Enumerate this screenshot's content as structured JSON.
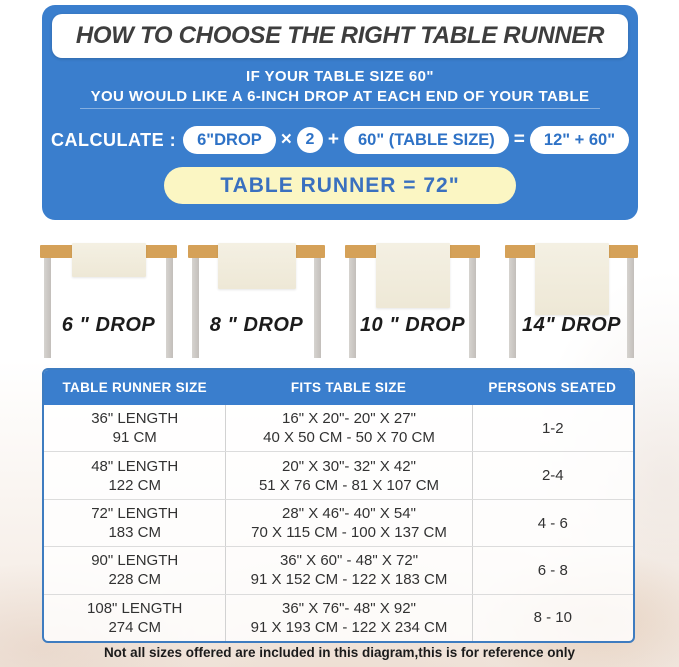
{
  "header": {
    "title": "HOW TO CHOOSE THE RIGHT TABLE RUNNER",
    "subtitle_line1": "IF YOUR TABLE SIZE 60\"",
    "subtitle_line2": "YOU WOULD LIKE A 6-INCH DROP AT EACH END OF YOUR TABLE",
    "calculate_label": "CALCULATE :",
    "formula": {
      "drop_pill": "6\"DROP",
      "times": "×",
      "multiplier": "2",
      "plus": "+",
      "table_size_pill": "60\" (TABLE SIZE)",
      "equals": "=",
      "result_pill": "12\" + 60\""
    },
    "runner_result": "TABLE RUNNER = 72\""
  },
  "diagram": {
    "tables": [
      {
        "label": "6 \" DROP"
      },
      {
        "label": "8 \" DROP"
      },
      {
        "label": "10 \" DROP"
      },
      {
        "label": "14\" DROP"
      }
    ]
  },
  "size_table": {
    "columns": [
      "TABLE RUNNER SIZE",
      "FITS TABLE SIZE",
      "PERSONS SEATED"
    ],
    "rows": [
      {
        "size1": "36\" LENGTH",
        "size2": "91 CM",
        "fits1": "16\" X 20\"- 20\" X 27\"",
        "fits2": "40 X 50 CM - 50 X 70 CM",
        "persons": "1-2"
      },
      {
        "size1": "48\" LENGTH",
        "size2": "122 CM",
        "fits1": "20\" X 30\"- 32\" X 42\"",
        "fits2": "51 X 76 CM - 81 X 107 CM",
        "persons": "2-4"
      },
      {
        "size1": "72\" LENGTH",
        "size2": "183 CM",
        "fits1": "28\" X 46\"- 40\" X 54\"",
        "fits2": "70 X 115 CM - 100 X 137 CM",
        "persons": "4 - 6"
      },
      {
        "size1": "90\" LENGTH",
        "size2": "228 CM",
        "fits1": "36\" X 60\" - 48\" X 72\"",
        "fits2": "91 X 152 CM - 122 X 183 CM",
        "persons": "6 - 8"
      },
      {
        "size1": "108\" LENGTH",
        "size2": "274 CM",
        "fits1": "36\" X 76\"- 48\" X 92\"",
        "fits2": "91 X 193 CM - 122 X 234 CM",
        "persons": "8 - 10"
      }
    ]
  },
  "footer": {
    "note": "Not all sizes offered are included in this diagram,this is for reference only"
  },
  "colors": {
    "accent_blue": "#3a7ecd",
    "pill_text_blue": "#2e72c6",
    "result_yellow": "#fbf6c3",
    "wood": "#d5a158",
    "runner_cream": "#f1ecdd",
    "table_border_blue": "#3e7cc0"
  }
}
